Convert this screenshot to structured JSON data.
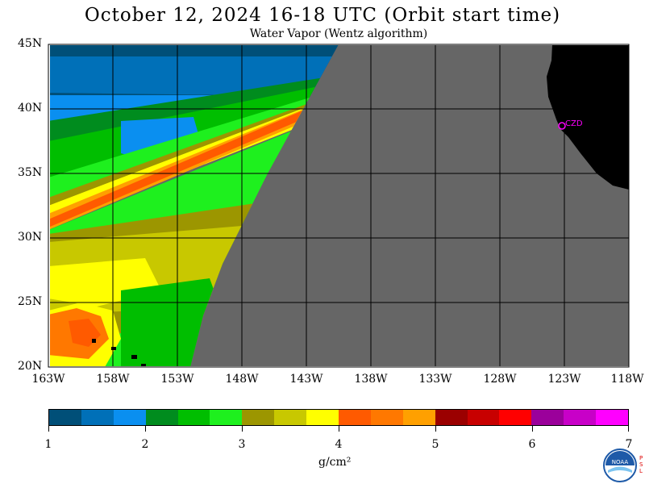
{
  "header": {
    "title": "October 12, 2024  16-18 UTC  (Orbit start time)",
    "subtitle": "Water Vapor (Wentz algorithm)"
  },
  "map": {
    "lat_range": [
      20,
      45
    ],
    "lon_range": [
      -163,
      -118
    ],
    "lat_labels": [
      "45N",
      "40N",
      "35N",
      "30N",
      "25N",
      "20N"
    ],
    "lon_labels": [
      "163W",
      "158W",
      "153W",
      "148W",
      "143W",
      "138W",
      "133W",
      "128W",
      "123W",
      "118W"
    ],
    "grid": true,
    "no_data_color": "#666666",
    "land_color": "#000000",
    "station_label": "CZD",
    "station_color": "#ff00ff",
    "swath_edge": [
      [
        -140.5,
        45
      ],
      [
        -146,
        35
      ],
      [
        -149.5,
        28
      ],
      [
        -151,
        24
      ],
      [
        -152,
        20
      ]
    ]
  },
  "colorbar": {
    "ticks": [
      "1",
      "2",
      "3",
      "4",
      "5",
      "6",
      "7"
    ],
    "units": "g/cm²",
    "colors": [
      "#004f78",
      "#0070b8",
      "#0a8ff0",
      "#008c1e",
      "#00be00",
      "#1ef01e",
      "#9c9600",
      "#c8c800",
      "#ffff00",
      "#ff5a00",
      "#ff7800",
      "#ffa000",
      "#9b0000",
      "#c80000",
      "#ff0000",
      "#9b009b",
      "#c800c8",
      "#ff00ff"
    ]
  },
  "logo": {
    "name": "NOAA",
    "side_text": "PSL"
  }
}
